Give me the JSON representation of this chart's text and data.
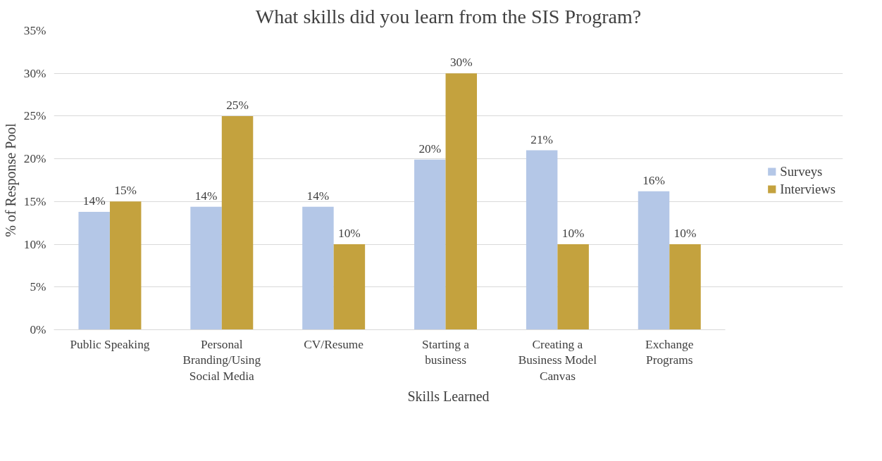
{
  "chart_data": {
    "type": "bar",
    "title": "What skills did you learn from the SIS Program?",
    "xlabel": "Skills Learned",
    "ylabel": "% of Response Pool",
    "categories": [
      "Public Speaking",
      "Personal Branding/Using Social Media",
      "CV/Resume",
      "Starting a business",
      "Creating a Business Model Canvas",
      "Exchange Programs"
    ],
    "series": [
      {
        "name": "Surveys",
        "color": "#b4c7e7",
        "values": [
          13.8,
          14.4,
          14.4,
          19.9,
          21.0,
          16.2
        ],
        "value_labels": [
          "14%",
          "14%",
          "14%",
          "20%",
          "21%",
          "16%"
        ]
      },
      {
        "name": "Interviews",
        "color": "#c4a23e",
        "values": [
          15,
          25,
          10,
          30,
          10,
          10
        ],
        "value_labels": [
          "15%",
          "25%",
          "10%",
          "30%",
          "10%",
          "10%"
        ]
      }
    ],
    "ylim": [
      0,
      35
    ],
    "yticks": [
      {
        "value": 0,
        "label": "0%"
      },
      {
        "value": 5,
        "label": "5%"
      },
      {
        "value": 10,
        "label": "10%"
      },
      {
        "value": 15,
        "label": "15%"
      },
      {
        "value": 20,
        "label": "20%"
      },
      {
        "value": 25,
        "label": "25%"
      },
      {
        "value": 30,
        "label": "30%"
      },
      {
        "value": 35,
        "label": "35%"
      }
    ],
    "grid": "y",
    "legend": "right"
  }
}
